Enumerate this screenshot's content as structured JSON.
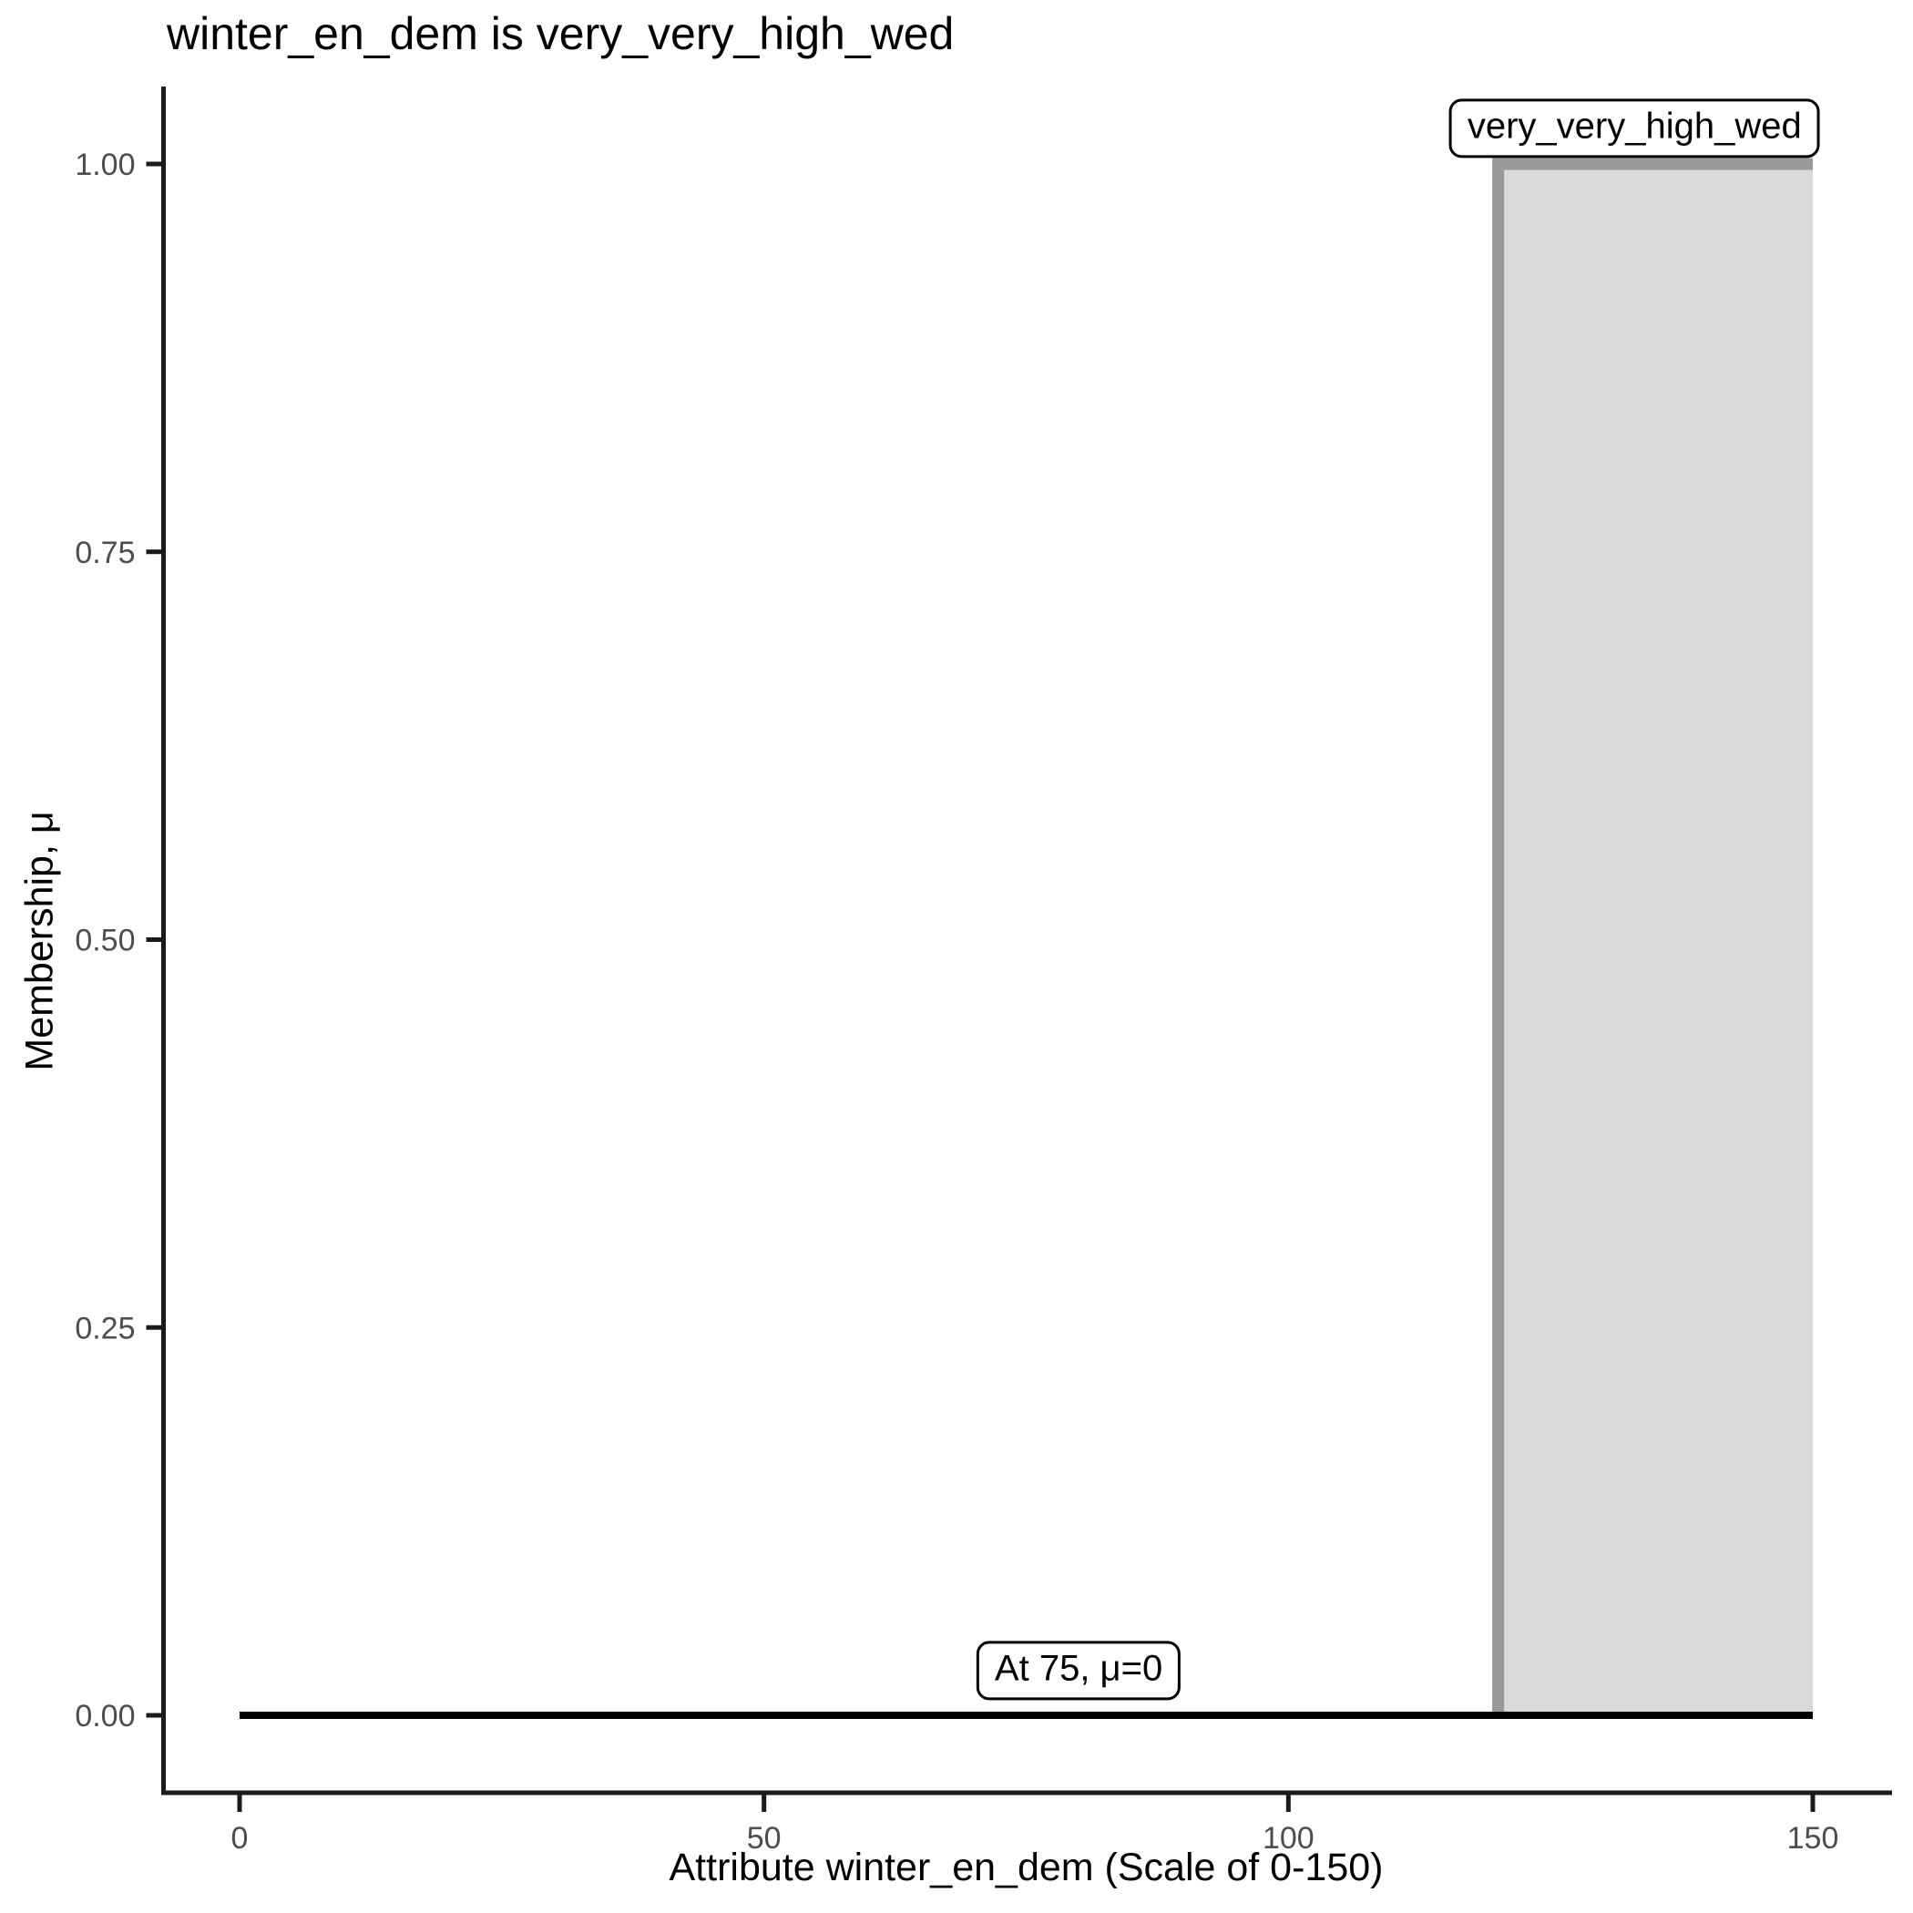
{
  "chart_data": {
    "type": "area",
    "title": "winter_en_dem is very_very_high_wed",
    "xlabel": "Attribute winter_en_dem (Scale of 0-150)",
    "ylabel": "Membership, μ",
    "xlim": [
      0,
      150
    ],
    "ylim": [
      0,
      1
    ],
    "x_ticks": [
      0,
      50,
      100,
      150
    ],
    "x_tick_labels": [
      "0",
      "50",
      "100",
      "150"
    ],
    "y_ticks": [
      0,
      0.25,
      0.5,
      0.75,
      1
    ],
    "y_tick_labels": [
      "0.00",
      "0.25",
      "0.50",
      "0.75",
      "1.00"
    ],
    "grid": false,
    "legend": false,
    "series": [
      {
        "name": "very_very_high_wed",
        "type": "area",
        "description": "crisp rectangular fuzzy set: mu=1 from x=120 to x=150, mu=0 elsewhere",
        "line_color": "#999999",
        "fill_color": "#d9d9d9",
        "points": [
          [
            120,
            0
          ],
          [
            120,
            1
          ],
          [
            150,
            1
          ]
        ]
      },
      {
        "name": "membership_at_input",
        "type": "line",
        "description": "evaluated membership level line, mu=0 across domain",
        "line_color": "#000000",
        "points": [
          [
            0,
            0
          ],
          [
            150,
            0
          ]
        ]
      }
    ],
    "annotations": [
      {
        "text": "very_very_high_wed",
        "x": 133,
        "y": 1
      },
      {
        "text": "At 75, μ=0",
        "x": 80,
        "y": 0
      }
    ]
  },
  "colors": {
    "set_line": "#999999",
    "set_fill": "#d9d9d9",
    "eval_line": "#000000",
    "axis": "#1a1a1a",
    "tick_label": "#4d4d4d",
    "text": "#000000",
    "background": "#ffffff"
  }
}
